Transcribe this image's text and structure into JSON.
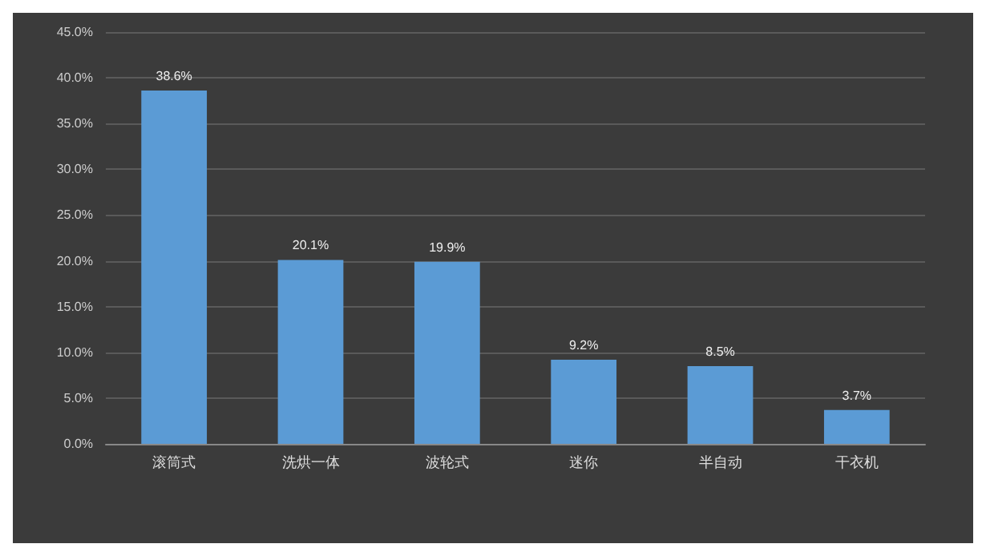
{
  "chart_data": {
    "type": "bar",
    "categories": [
      "滚筒式",
      "洗烘一体",
      "波轮式",
      "迷你",
      "半自动",
      "干衣机"
    ],
    "values": [
      38.6,
      20.1,
      19.9,
      9.2,
      8.5,
      3.7
    ],
    "value_labels": [
      "38.6%",
      "20.1%",
      "19.9%",
      "9.2%",
      "8.5%",
      "3.7%"
    ],
    "color": "#5b9bd5",
    "ylim": [
      0,
      45
    ],
    "yticks": [
      {
        "value": 0,
        "label": "0.0%"
      },
      {
        "value": 5,
        "label": "5.0%"
      },
      {
        "value": 10,
        "label": "10.0%"
      },
      {
        "value": 15,
        "label": "15.0%"
      },
      {
        "value": 20,
        "label": "20.0%"
      },
      {
        "value": 25,
        "label": "25.0%"
      },
      {
        "value": 30,
        "label": "30.0%"
      },
      {
        "value": 35,
        "label": "35.0%"
      },
      {
        "value": 40,
        "label": "40.0%"
      },
      {
        "value": 45,
        "label": "45.0%"
      }
    ],
    "grid": "y"
  }
}
